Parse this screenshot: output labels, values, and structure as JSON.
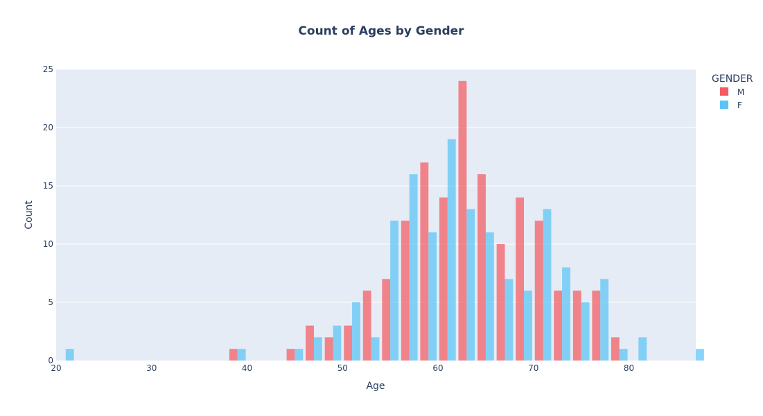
{
  "chart_data": {
    "type": "bar",
    "title": "Count of Ages by Gender",
    "xlabel": "Age",
    "ylabel": "Count",
    "xlim": [
      20,
      87
    ],
    "ylim": [
      0,
      25
    ],
    "x_ticks": [
      20,
      30,
      40,
      50,
      60,
      70,
      80
    ],
    "y_ticks": [
      0,
      5,
      10,
      15,
      20,
      25
    ],
    "grid": true,
    "bin_size": 2,
    "legend": {
      "title": "GENDER",
      "placement": "top-right",
      "entries": [
        "M",
        "F"
      ]
    },
    "series": [
      {
        "name": "M",
        "color": "#f45a5f",
        "bins": [
          {
            "x": 38,
            "value": 1
          },
          {
            "x": 44,
            "value": 1
          },
          {
            "x": 46,
            "value": 3
          },
          {
            "x": 48,
            "value": 2
          },
          {
            "x": 50,
            "value": 3
          },
          {
            "x": 52,
            "value": 6
          },
          {
            "x": 54,
            "value": 7
          },
          {
            "x": 56,
            "value": 12
          },
          {
            "x": 58,
            "value": 17
          },
          {
            "x": 60,
            "value": 14
          },
          {
            "x": 62,
            "value": 24
          },
          {
            "x": 64,
            "value": 16
          },
          {
            "x": 66,
            "value": 10
          },
          {
            "x": 68,
            "value": 14
          },
          {
            "x": 70,
            "value": 12
          },
          {
            "x": 72,
            "value": 6
          },
          {
            "x": 74,
            "value": 6
          },
          {
            "x": 76,
            "value": 6
          },
          {
            "x": 78,
            "value": 2
          }
        ]
      },
      {
        "name": "F",
        "color": "#5bc3f5",
        "bins": [
          {
            "x": 20,
            "value": 1
          },
          {
            "x": 38,
            "value": 1
          },
          {
            "x": 44,
            "value": 1
          },
          {
            "x": 46,
            "value": 2
          },
          {
            "x": 48,
            "value": 3
          },
          {
            "x": 50,
            "value": 5
          },
          {
            "x": 52,
            "value": 2
          },
          {
            "x": 54,
            "value": 12
          },
          {
            "x": 56,
            "value": 16
          },
          {
            "x": 58,
            "value": 11
          },
          {
            "x": 60,
            "value": 19
          },
          {
            "x": 62,
            "value": 13
          },
          {
            "x": 64,
            "value": 11
          },
          {
            "x": 66,
            "value": 7
          },
          {
            "x": 68,
            "value": 6
          },
          {
            "x": 70,
            "value": 13
          },
          {
            "x": 72,
            "value": 8
          },
          {
            "x": 74,
            "value": 5
          },
          {
            "x": 76,
            "value": 7
          },
          {
            "x": 78,
            "value": 1
          },
          {
            "x": 80,
            "value": 2
          },
          {
            "x": 86,
            "value": 1
          }
        ]
      }
    ]
  }
}
